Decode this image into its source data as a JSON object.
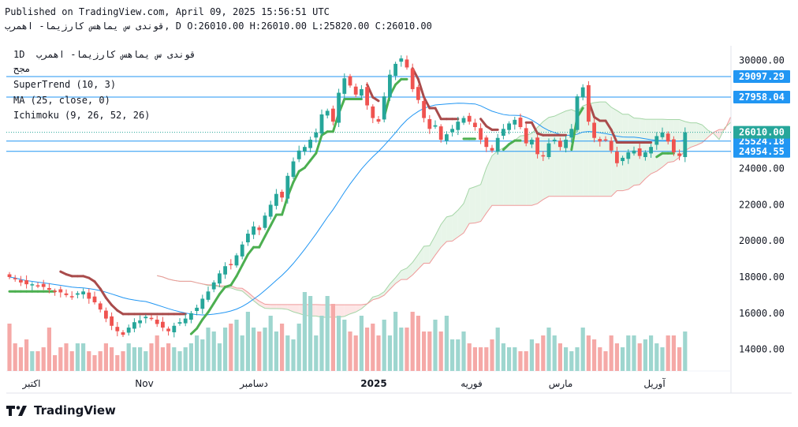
{
  "header": {
    "published": "Published on TradingView.com, April 09, 2025 15:56:51 UTC",
    "ohlc": "قوندی س یماهس کارزیما- اهمرب, D O:26010.00 H:26010.00 L:25820.00 C:26010.00"
  },
  "legend": {
    "symbol": "قوندی س یماهس کارزیما- اهمرب",
    "interval": "1D",
    "exchange": "مجح",
    "supertrend": "SuperTrend (10, 3)",
    "ma": "MA (25, close, 0)",
    "ichimoku": "Ichimoku (9, 26, 52, 26)"
  },
  "brand": {
    "name": "TradingView"
  },
  "colors": {
    "up": "#26a69a",
    "down": "#ef5350",
    "supertrend_up": "#4caf50",
    "supertrend_down": "#a94b4b",
    "ma": "#2196f3",
    "hline": "#2196f3",
    "cloud_bull": "#e8f5e9",
    "cloud_bear": "#fde6e6"
  },
  "chart_data": {
    "type": "candlestick",
    "title": "قوندی س یماهس کارزیما- اهمرب",
    "x_tick_labels": [
      "اکتبر",
      "Nov",
      "دسامبر",
      "2025",
      "فوریه",
      "مارس",
      "آوریل"
    ],
    "y_ticks": [
      14000,
      16000,
      18000,
      20000,
      22000,
      24000,
      26000,
      28000,
      30000
    ],
    "ylim": [
      12800,
      30800
    ],
    "last_price": 26010,
    "price_lines": [
      29097.29,
      27958.04,
      25524.18,
      24954.55
    ],
    "ohlc": {
      "open": 26010,
      "high": 26010,
      "low": 25820,
      "close": 26010
    },
    "candles_close": [
      18000,
      17900,
      17700,
      17600,
      17600,
      17500,
      17450,
      17300,
      17200,
      17150,
      17000,
      16900,
      17100,
      17200,
      16800,
      16600,
      16200,
      15700,
      15300,
      15000,
      14800,
      15200,
      15500,
      15600,
      15800,
      15700,
      15400,
      15200,
      15000,
      15300,
      15500,
      15700,
      16000,
      16300,
      16800,
      17200,
      17700,
      18200,
      18600,
      18700,
      19200,
      19800,
      20400,
      20800,
      20600,
      21400,
      22000,
      22600,
      22400,
      23600,
      24400,
      25000,
      25200,
      25600,
      26000,
      27000,
      27200,
      26600,
      28200,
      29000,
      28600,
      28100,
      28400,
      27500,
      26800,
      26600,
      28000,
      29200,
      29800,
      30100,
      29600,
      28400,
      27800,
      26800,
      26200,
      26400,
      25600,
      25900,
      26200,
      26600,
      26800,
      26600,
      26300,
      25600,
      25200,
      25000,
      25700,
      26200,
      26500,
      26700,
      26300,
      25400,
      25600,
      24800,
      24700,
      25400,
      25600,
      25200,
      25600,
      26200,
      28000,
      28500,
      26600,
      25700,
      25500,
      25600,
      25000,
      24300,
      24600,
      24900,
      25000,
      24700,
      24900,
      25200,
      25800,
      26000,
      25500,
      24900,
      24700,
      26010
    ],
    "volume_relative": [
      0.6,
      0.35,
      0.3,
      0.4,
      0.25,
      0.25,
      0.3,
      0.55,
      0.2,
      0.3,
      0.35,
      0.25,
      0.35,
      0.35,
      0.25,
      0.2,
      0.25,
      0.35,
      0.3,
      0.2,
      0.25,
      0.35,
      0.3,
      0.3,
      0.25,
      0.35,
      0.45,
      0.3,
      0.35,
      0.3,
      0.25,
      0.3,
      0.35,
      0.45,
      0.4,
      0.55,
      0.5,
      0.35,
      0.55,
      0.6,
      0.65,
      0.45,
      0.75,
      0.55,
      0.5,
      0.55,
      0.7,
      0.5,
      0.6,
      0.45,
      0.4,
      0.6,
      1.0,
      0.95,
      0.45,
      0.7,
      0.95,
      0.85,
      0.7,
      0.65,
      0.5,
      0.45,
      0.7,
      0.55,
      0.6,
      0.45,
      0.65,
      0.45,
      0.75,
      0.55,
      0.55,
      0.75,
      0.7,
      0.5,
      0.5,
      0.65,
      0.5,
      0.7,
      0.4,
      0.4,
      0.5,
      0.35,
      0.3,
      0.3,
      0.3,
      0.4,
      0.55,
      0.35,
      0.3,
      0.3,
      0.25,
      0.25,
      0.4,
      0.35,
      0.45,
      0.55,
      0.45,
      0.35,
      0.3,
      0.25,
      0.3,
      0.55,
      0.45,
      0.4,
      0.3,
      0.25,
      0.45,
      0.35,
      0.3,
      0.45,
      0.45,
      0.35,
      0.4,
      0.45,
      0.35,
      0.3,
      0.45,
      0.45,
      0.3,
      0.5
    ]
  }
}
